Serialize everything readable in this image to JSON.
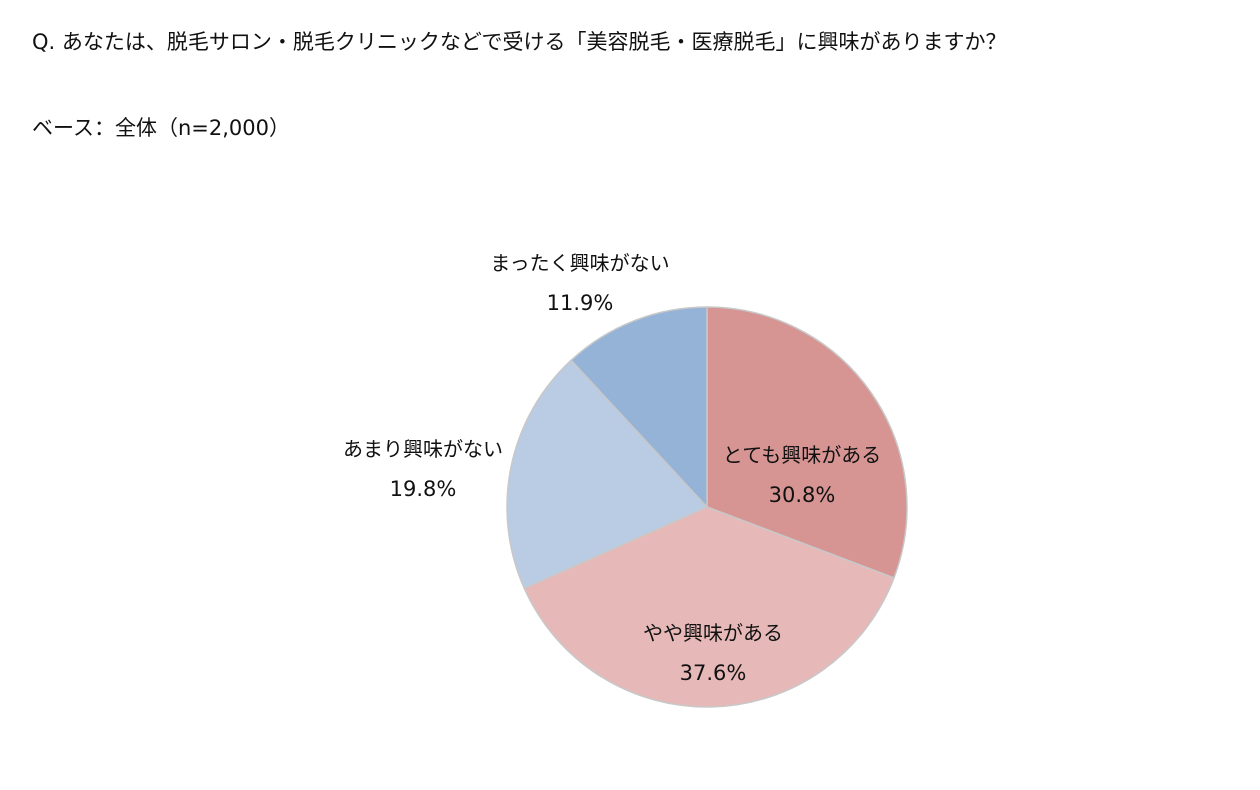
{
  "question": "Q. あなたは、脱毛サロン・脱毛クリニックなどで受ける「美容脱毛・医療脱毛」に興味がありますか？",
  "base": "ベース：全体（n=2,000）",
  "chart_data": {
    "type": "pie",
    "start_angle": "12 o'clock",
    "direction": "clockwise",
    "slices": [
      {
        "label": "とても興味がある",
        "value": 30.8,
        "value_label": "30.8%",
        "color": "#d69593"
      },
      {
        "label": "やや興味がある",
        "value": 37.6,
        "value_label": "37.6%",
        "color": "#e6b9b8"
      },
      {
        "label": "あまり興味がない",
        "value": 19.8,
        "value_label": "19.8%",
        "color": "#b9cce4"
      },
      {
        "label": "まったく興味がない",
        "value": 11.9,
        "value_label": "11.9%",
        "color": "#95b3d7"
      }
    ],
    "slice_border_color": "#c8c8c8"
  }
}
